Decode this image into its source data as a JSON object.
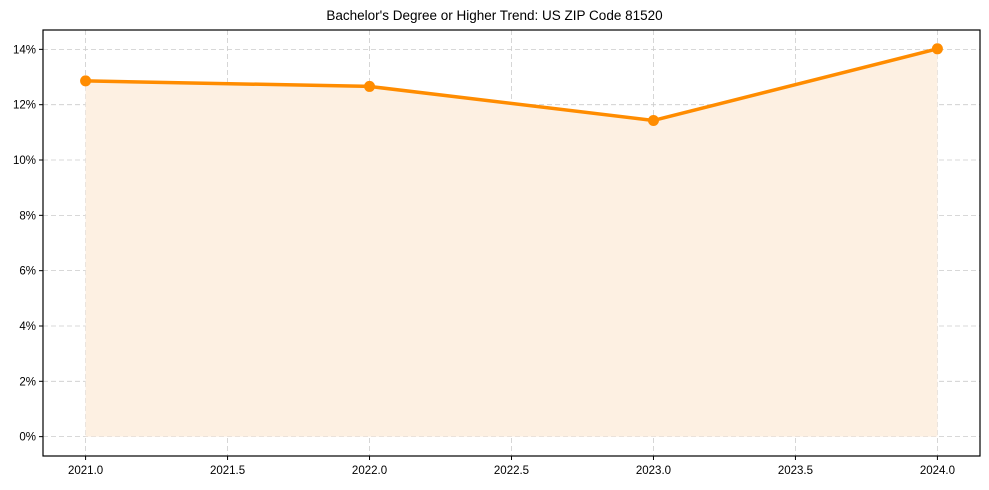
{
  "chart_data": {
    "type": "line",
    "title": "Bachelor's Degree or Higher Trend: US ZIP Code 81520",
    "xlabel": "",
    "ylabel": "",
    "x": [
      2021.0,
      2022.0,
      2023.0,
      2024.0
    ],
    "series": [
      {
        "name": "Bachelor's Degree or Higher (%)",
        "values": [
          12.86,
          12.66,
          11.43,
          14.02
        ],
        "color": "#ff8c00",
        "fill": "#fdf0e2",
        "marker": "circle"
      }
    ],
    "xticks": [
      "2021.0",
      "2021.5",
      "2022.0",
      "2022.5",
      "2023.0",
      "2023.5",
      "2024.0"
    ],
    "yticks": [
      "0%",
      "2%",
      "4%",
      "6%",
      "8%",
      "10%",
      "12%",
      "14%"
    ],
    "xlim": [
      2020.85,
      2024.15
    ],
    "ylim": [
      -0.7,
      14.7
    ],
    "grid": true,
    "grid_style": "dashed",
    "legend": null
  },
  "colors": {
    "line": "#ff8c00",
    "area_fill": "#fdf0e2",
    "grid": "#cccccc",
    "axes": "#000000"
  }
}
